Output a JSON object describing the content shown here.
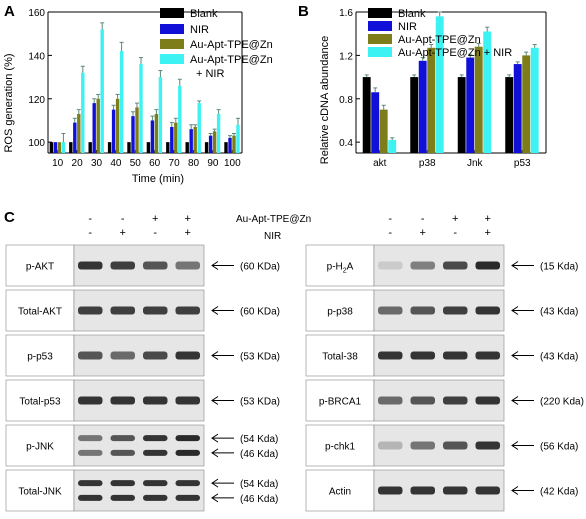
{
  "panels": {
    "a": "A",
    "b": "B",
    "c": "C"
  },
  "legend": {
    "blank": "Blank",
    "nir": "NIR",
    "au": "Au-Apt-TPE@Zn",
    "au_nir_line1": "Au-Apt-TPE@Zn",
    "au_nir_line2": "+ NIR",
    "au_nir": "Au-Apt-TPE@Zn + NIR"
  },
  "colors": {
    "blank": "#000000",
    "nir": "#1010d8",
    "au": "#7d7d1a",
    "au_nir": "#3cf2f2",
    "error": "#5a8a7a"
  },
  "chart_data": [
    {
      "type": "bar",
      "panel": "A",
      "xlabel": "Time (min)",
      "ylabel": "ROS generation (%)",
      "ylim": [
        95,
        160
      ],
      "yticks": [
        100,
        120,
        140,
        160
      ],
      "categories": [
        "10",
        "20",
        "30",
        "40",
        "50",
        "60",
        "70",
        "80",
        "90",
        "100"
      ],
      "series": [
        {
          "name": "Blank",
          "values": [
            100,
            100,
            100,
            100,
            100,
            100,
            100,
            100,
            100,
            100
          ],
          "errors": [
            0,
            0,
            0,
            0,
            0,
            0,
            0,
            0,
            0,
            0
          ]
        },
        {
          "name": "NIR",
          "values": [
            100,
            109,
            118,
            115,
            112,
            110,
            107,
            106,
            103,
            102
          ],
          "errors": [
            0,
            2,
            2,
            2,
            2,
            2,
            2,
            2,
            1,
            1
          ]
        },
        {
          "name": "Au-Apt-TPE@Zn",
          "values": [
            100,
            113,
            120,
            120,
            116,
            113,
            109,
            107,
            105,
            103
          ],
          "errors": [
            0,
            2,
            2,
            2,
            2,
            2,
            2,
            1,
            1,
            1
          ]
        },
        {
          "name": "Au-Apt-TPE@Zn + NIR",
          "values": [
            100,
            132,
            152,
            142,
            136,
            130,
            126,
            118,
            113,
            108
          ],
          "errors": [
            4,
            3,
            3,
            4,
            3,
            3,
            3,
            1,
            2,
            3
          ]
        }
      ]
    },
    {
      "type": "bar",
      "panel": "B",
      "ylabel": "Relative cDNA abundance",
      "ylim": [
        0.3,
        1.6
      ],
      "yticks": [
        0.4,
        0.8,
        1.2,
        1.6
      ],
      "categories": [
        "akt",
        "p38",
        "Jnk",
        "p53"
      ],
      "series": [
        {
          "name": "Blank",
          "values": [
            1.0,
            1.0,
            1.0,
            1.0
          ],
          "errors": [
            0.02,
            0.02,
            0.02,
            0.02
          ]
        },
        {
          "name": "NIR",
          "values": [
            0.86,
            1.15,
            1.18,
            1.12
          ],
          "errors": [
            0.04,
            0.03,
            0.03,
            0.02
          ]
        },
        {
          "name": "Au-Apt-TPE@Zn",
          "values": [
            0.7,
            1.27,
            1.28,
            1.2
          ],
          "errors": [
            0.04,
            0.03,
            0.03,
            0.03
          ]
        },
        {
          "name": "Au-Apt-TPE@Zn + NIR",
          "values": [
            0.42,
            1.56,
            1.42,
            1.27
          ],
          "errors": [
            0.02,
            0.04,
            0.04,
            0.03
          ]
        }
      ]
    }
  ],
  "western_blot": {
    "left_header": {
      "nanoparticle_row": [
        "-",
        "-",
        "+",
        "+"
      ],
      "nir_row": [
        "-",
        "+",
        "-",
        "+"
      ]
    },
    "right_header": {
      "nanoparticle_row": [
        "-",
        "-",
        "+",
        "+"
      ],
      "nir_row": [
        "-",
        "+",
        "-",
        "+"
      ]
    },
    "header_label_au": "Au-Apt-TPE@Zn",
    "header_label_nir": "NIR",
    "left": [
      {
        "label": "p-AKT",
        "sizes": [
          "(60 KDa)"
        ],
        "intensity": [
          0.85,
          0.8,
          0.7,
          0.55
        ]
      },
      {
        "label": "Total-AKT",
        "sizes": [
          "(60 KDa)"
        ],
        "intensity": [
          0.8,
          0.8,
          0.8,
          0.8
        ]
      },
      {
        "label": "p-p53",
        "sizes": [
          "(53 KDa)"
        ],
        "intensity": [
          0.7,
          0.6,
          0.75,
          0.85
        ]
      },
      {
        "label": "Total-p53",
        "sizes": [
          "(53 KDa)"
        ],
        "intensity": [
          0.85,
          0.85,
          0.85,
          0.85
        ]
      },
      {
        "label": "p-JNK",
        "sizes": [
          "(54 Kda)",
          "(46 Kda)"
        ],
        "intensity": [
          0.55,
          0.7,
          0.85,
          0.9
        ]
      },
      {
        "label": "Total-JNK",
        "sizes": [
          "(54 Kda)",
          "(46 Kda)"
        ],
        "intensity": [
          0.85,
          0.85,
          0.85,
          0.85
        ]
      }
    ],
    "right": [
      {
        "label_main": "p-H",
        "label_sub": "2",
        "label_tail": "A",
        "sizes": [
          "(15 Kda)"
        ],
        "intensity": [
          0.15,
          0.5,
          0.75,
          0.9
        ]
      },
      {
        "label": "p-p38",
        "sizes": [
          "(43 Kda)"
        ],
        "intensity": [
          0.6,
          0.7,
          0.8,
          0.85
        ]
      },
      {
        "label": "Total-38",
        "sizes": [
          "(43 Kda)"
        ],
        "intensity": [
          0.85,
          0.85,
          0.85,
          0.85
        ]
      },
      {
        "label": "p-BRCA1",
        "sizes": [
          "(220 Kda)"
        ],
        "intensity": [
          0.6,
          0.7,
          0.8,
          0.85
        ]
      },
      {
        "label": "p-chk1",
        "sizes": [
          "(56 Kda)"
        ],
        "intensity": [
          0.25,
          0.55,
          0.7,
          0.85
        ]
      },
      {
        "label": "Actin",
        "sizes": [
          "(42 Kda)"
        ],
        "intensity": [
          0.85,
          0.85,
          0.85,
          0.85
        ]
      }
    ]
  }
}
